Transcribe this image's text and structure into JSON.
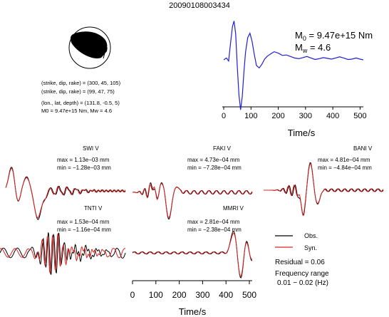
{
  "page": {
    "title": "20090108003434"
  },
  "source": {
    "solution_lines": [
      "(strike, dip, rake) = (300, 45, 105)",
      "(strike, dip, rake) = (99, 47, 75)",
      "(lon., lat, depth) = (131.8, -0.5, 5)",
      "M0 = 9.47e+15 Nm, Mw = 4.6"
    ]
  },
  "stf": {
    "m0": "9.47e+15 Nm",
    "mw": "4.6",
    "m0_label": "M",
    "m0_sub": "0",
    "mw_label": "M",
    "mw_sub": "w",
    "xlabel": "Time/s",
    "xticks": [
      0,
      100,
      200,
      300,
      400,
      500
    ],
    "color": "#1f1fd6"
  },
  "stations": [
    {
      "name": "SWI V",
      "max": "max = 1.13e−03 mm",
      "min": "min = −1.28e−03 mm"
    },
    {
      "name": "FAKI V",
      "max": "max = 4.73e−04 mm",
      "min": "min = −7.28e−04 mm"
    },
    {
      "name": "BANI V",
      "max": "max = 4.81e−04 mm",
      "min": "min = −4.84e−04 mm"
    },
    {
      "name": "TNTI V",
      "max": "max = 1.53e−04 mm",
      "min": "min = −1.16e−04 mm"
    },
    {
      "name": "MMRI V",
      "max": "max = 2.81e−04 mm",
      "min": "min = −2.38e−04 mm"
    }
  ],
  "legend": {
    "obs": "Obs.",
    "syn": "Syn.",
    "obs_color": "#000000",
    "syn_color": "#e02020",
    "residual": "Residual = 0.06",
    "freq_label": "Frequency range",
    "freq_value": "0.01 − 0.02 (Hz)"
  },
  "waveform_axis": {
    "xlabel": "Time/s",
    "xticks": [
      0,
      100,
      200,
      300,
      400,
      500
    ]
  },
  "chart_data": [
    {
      "type": "line",
      "title": "",
      "xlabel": "Time/s",
      "ylabel": "",
      "xlim": [
        0,
        512
      ],
      "series": [
        {
          "x": [
            0,
            10,
            18,
            25,
            32,
            38,
            44,
            50,
            56,
            62,
            68,
            74,
            80,
            88,
            96,
            104,
            112,
            120,
            130,
            140,
            150,
            160,
            172,
            185,
            200,
            215,
            230,
            245,
            260,
            275,
            290,
            305,
            320,
            335,
            350,
            365,
            380,
            395,
            410,
            425,
            440,
            455,
            470,
            485,
            500,
            512
          ],
          "values": [
            0.0,
            0.05,
            -0.03,
            0.45,
            0.9,
            1.05,
            0.7,
            -0.2,
            -0.95,
            -1.35,
            -1.0,
            -0.35,
            0.2,
            0.6,
            0.72,
            0.5,
            0.15,
            -0.15,
            -0.22,
            -0.12,
            0.02,
            0.1,
            0.16,
            0.22,
            0.18,
            0.12,
            0.13,
            0.09,
            0.05,
            0.03,
            0.06,
            0.09,
            0.05,
            0.01,
            0.03,
            0.06,
            0.04,
            0.02,
            0.05,
            0.08,
            0.05,
            0.01,
            0.02,
            0.05,
            0.02,
            0.0
          ]
        }
      ]
    },
    {
      "type": "line",
      "title": "",
      "xlabel": "Time/s",
      "ylabel": "",
      "xlim": [
        0,
        512
      ],
      "series": [
        {
          "name": "Obs.",
          "values": []
        },
        {
          "name": "Syn.",
          "values": []
        }
      ]
    }
  ]
}
